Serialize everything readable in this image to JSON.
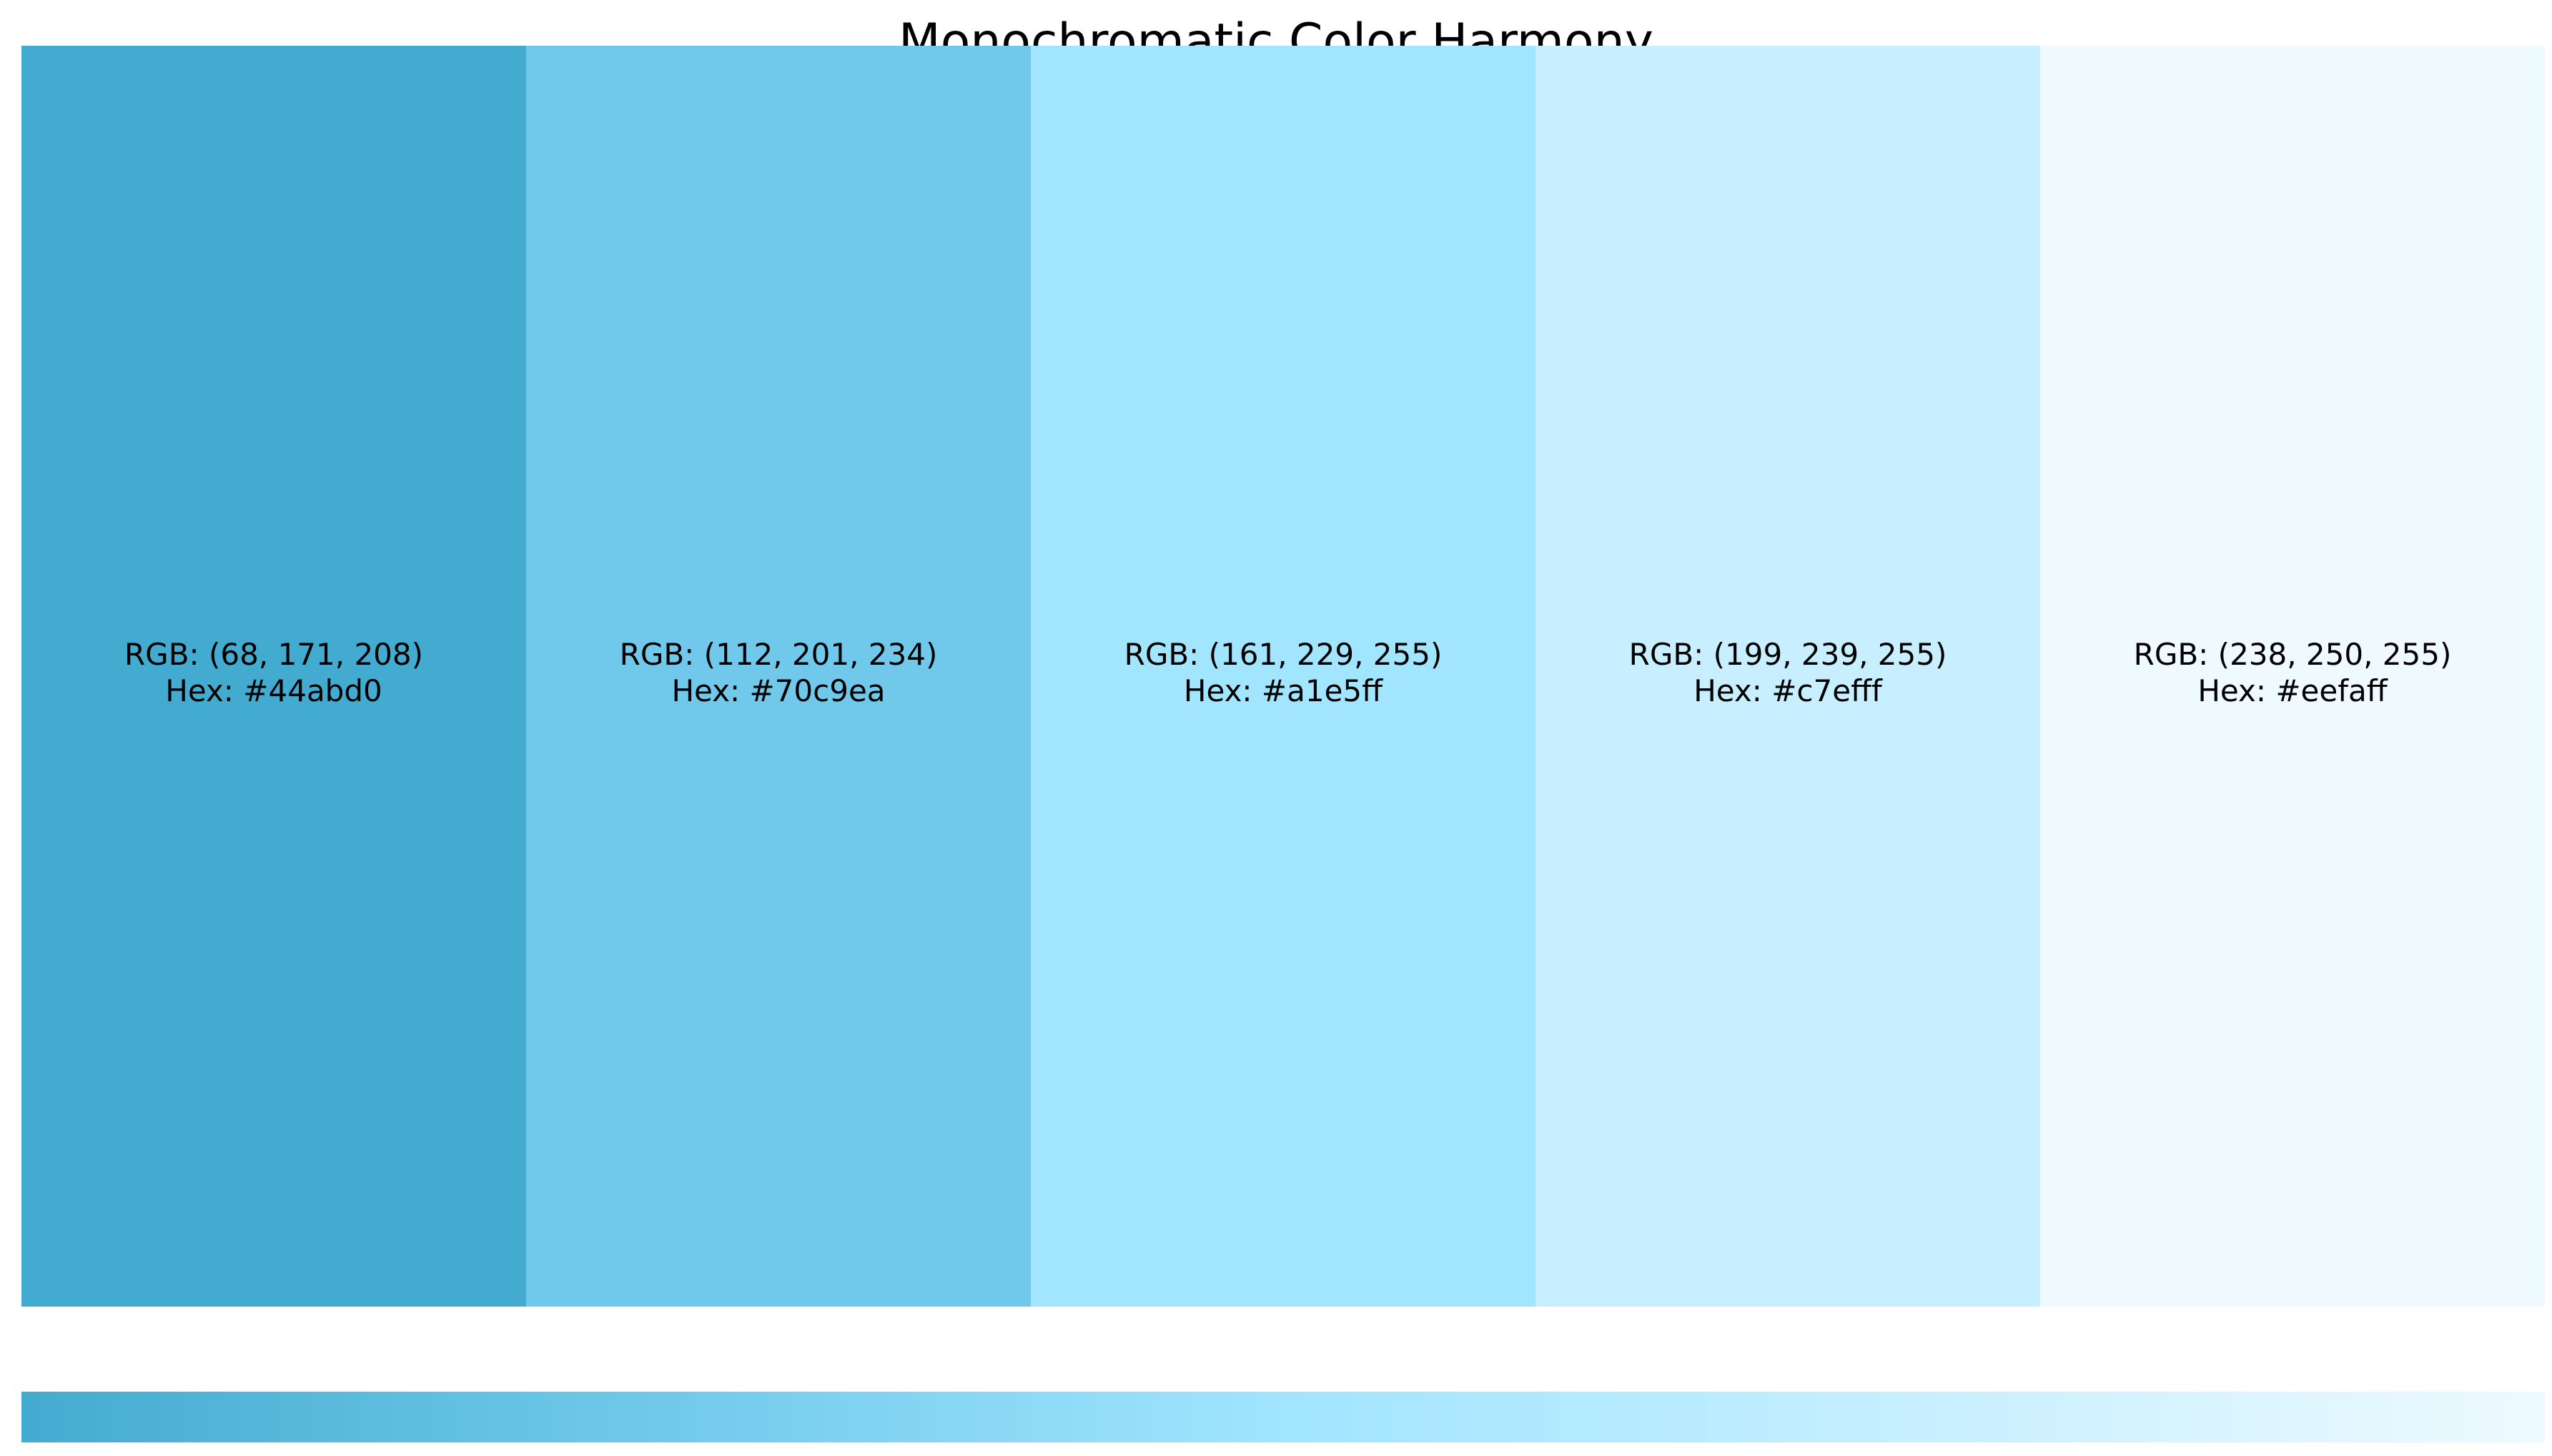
{
  "title": "Monochromatic Color Harmony",
  "swatches": [
    {
      "color": "#44abd0",
      "rgb_label": "RGB: (68, 171, 208)",
      "hex_label": "Hex: #44abd0"
    },
    {
      "color": "#70c9ea",
      "rgb_label": "RGB: (112, 201, 234)",
      "hex_label": "Hex: #70c9ea"
    },
    {
      "color": "#a1e5ff",
      "rgb_label": "RGB: (161, 229, 255)",
      "hex_label": "Hex: #a1e5ff"
    },
    {
      "color": "#c7efff",
      "rgb_label": "RGB: (199, 239, 255)",
      "hex_label": "Hex: #c7efff"
    },
    {
      "color": "#eefaff",
      "rgb_label": "RGB: (238, 250, 255)",
      "hex_label": "Hex: #eefaff"
    }
  ],
  "gradient": {
    "stops": [
      "#44abd0",
      "#70c9ea",
      "#a1e5ff",
      "#c7efff",
      "#eefaff"
    ]
  }
}
